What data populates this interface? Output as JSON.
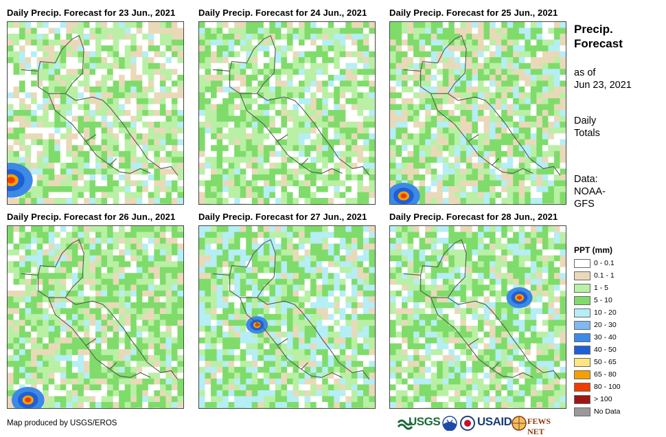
{
  "panels": [
    {
      "title": "Daily Precip. Forecast for 23 Jun., 2021"
    },
    {
      "title": "Daily Precip. Forecast for 24 Jun., 2021"
    },
    {
      "title": "Daily Precip. Forecast for 25 Jun., 2021"
    },
    {
      "title": "Daily Precip. Forecast for 26 Jun., 2021"
    },
    {
      "title": "Daily Precip. Forecast for 27 Jun., 2021"
    },
    {
      "title": "Daily Precip. Forecast for 28 Jun., 2021"
    }
  ],
  "sidebar": {
    "title_line1": "Precip.",
    "title_line2": "Forecast",
    "asof_line1": "as of",
    "asof_line2": "Jun 23, 2021",
    "totals_line1": "Daily",
    "totals_line2": "Totals",
    "data_line1": "Data:",
    "data_line2": "NOAA-",
    "data_line3": "GFS"
  },
  "legend": {
    "title": "PPT (mm)",
    "items": [
      {
        "label": "0 - 0.1",
        "color": "#ffffff"
      },
      {
        "label": "0.1 - 1",
        "color": "#ead9b9"
      },
      {
        "label": "1 - 5",
        "color": "#b9f0a5"
      },
      {
        "label": "5 - 10",
        "color": "#7fdc6a"
      },
      {
        "label": "10 - 20",
        "color": "#b5eef5"
      },
      {
        "label": "20 - 30",
        "color": "#7fb9f0"
      },
      {
        "label": "30 - 40",
        "color": "#3c8ae6"
      },
      {
        "label": "40 - 50",
        "color": "#1f5fd6"
      },
      {
        "label": "50 - 65",
        "color": "#ffe680"
      },
      {
        "label": "65 - 80",
        "color": "#f5a000"
      },
      {
        "label": "80 - 100",
        "color": "#f03c00"
      },
      {
        "label": "> 100",
        "color": "#a01414"
      },
      {
        "label": "No Data",
        "color": "#999999"
      }
    ]
  },
  "credit": "Map produced by USGS/EROS",
  "logos": {
    "usgs": "USGS",
    "usaid": "USAID",
    "fewsnet": "FEWS NET"
  }
}
